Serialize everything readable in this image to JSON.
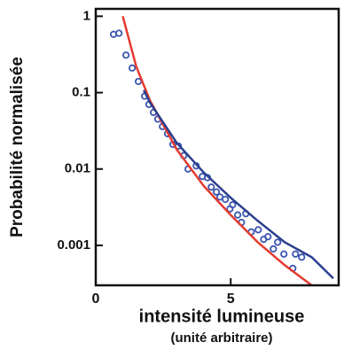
{
  "chart_data": {
    "type": "scatter",
    "y_label": "Probabilité normalisée",
    "x_label": "intensité lumineuse",
    "x_label_note": "(unité arbitraire)",
    "xlim": [
      0,
      9
    ],
    "xticks": [
      0,
      5
    ],
    "ylim": [
      0.0003,
      1.25
    ],
    "yticks": [
      1,
      0.1,
      0.01,
      0.001
    ],
    "ylog": true,
    "series": [
      {
        "mode": "markers",
        "color": "#3b55b0",
        "x": [
          0.66,
          0.86,
          1.12,
          1.35,
          1.58,
          1.81,
          1.97,
          2.14,
          2.3,
          2.47,
          2.66,
          2.86,
          3.06,
          3.26,
          3.42,
          3.72,
          3.95,
          4.14,
          4.28,
          4.47,
          4.6,
          4.8,
          4.97,
          5.07,
          5.26,
          5.4,
          5.56,
          5.76,
          6.02,
          6.22,
          6.38,
          6.58,
          6.74,
          6.97,
          7.4,
          7.63,
          7.3
        ],
        "values": [
          0.58,
          0.6,
          0.31,
          0.21,
          0.14,
          0.09,
          0.07,
          0.055,
          0.045,
          0.036,
          0.029,
          0.021,
          0.02,
          0.015,
          0.01,
          0.011,
          0.008,
          0.0077,
          0.0058,
          0.005,
          0.0043,
          0.004,
          0.003,
          0.0034,
          0.0025,
          0.002,
          0.0026,
          0.0015,
          0.0016,
          0.0012,
          0.0013,
          0.0009,
          0.0011,
          0.00077,
          0.00077,
          0.0007,
          0.0005
        ]
      },
      {
        "mode": "line",
        "color": "#e53a2f",
        "x": [
          1.0,
          1.5,
          2,
          3,
          4,
          5,
          6,
          7,
          8
        ],
        "values": [
          1,
          0.22,
          0.08,
          0.018,
          0.006,
          0.0025,
          0.0011,
          0.00055,
          0.0003
        ]
      },
      {
        "mode": "line",
        "color": "#2a3f8f",
        "x": [
          1.78,
          2,
          3,
          4,
          5,
          6,
          7,
          8,
          8.8
        ],
        "values": [
          0.108,
          0.075,
          0.022,
          0.009,
          0.0042,
          0.0021,
          0.0011,
          0.0007,
          0.00037
        ]
      }
    ]
  }
}
